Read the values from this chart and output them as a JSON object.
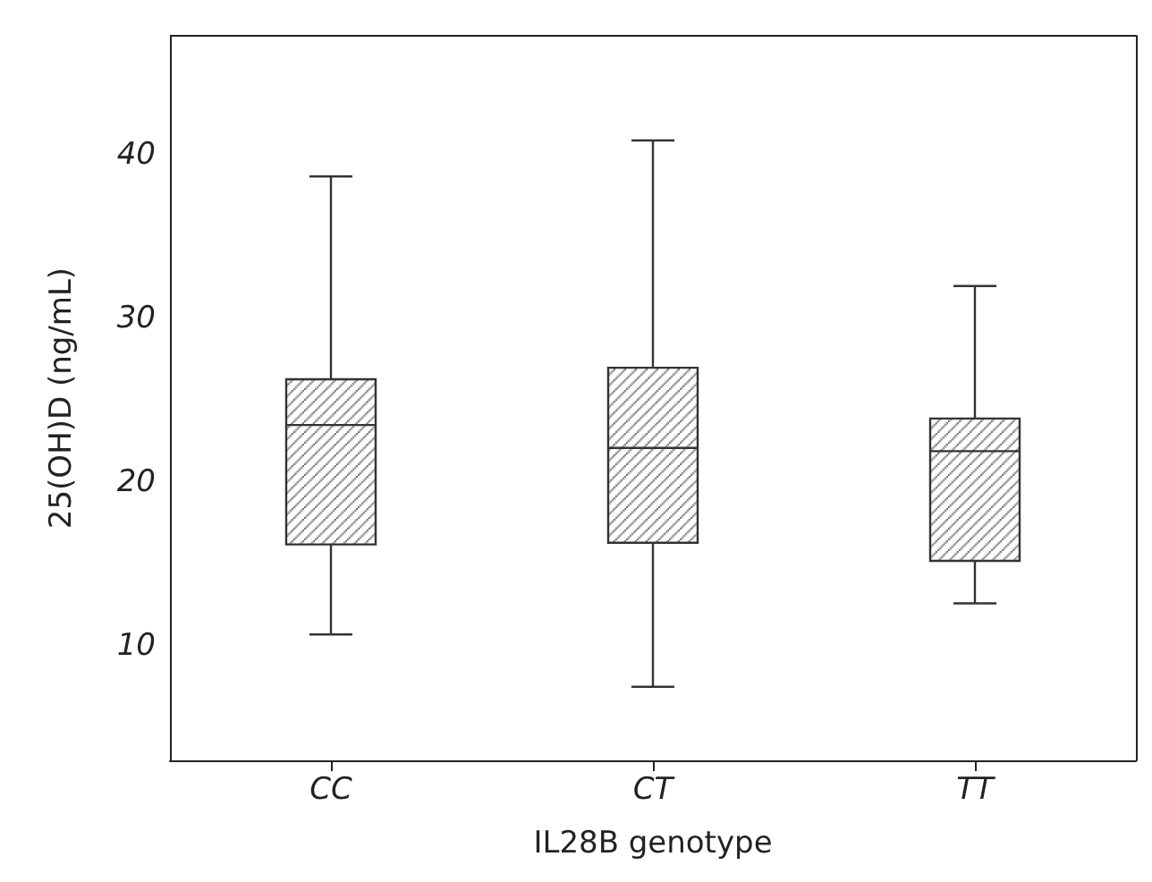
{
  "chart_data": {
    "type": "box",
    "xlabel": "IL28B genotype",
    "ylabel": "25(OH)D (ng/mL)",
    "categories": [
      "CC",
      "CT",
      "TT"
    ],
    "series": [
      {
        "color": "#333333",
        "boxes": [
          {
            "low": 10.7,
            "q1": 16.2,
            "median": 23.5,
            "q3": 26.3,
            "high": 38.7
          },
          {
            "low": 7.5,
            "q1": 16.3,
            "median": 22.1,
            "q3": 27.0,
            "high": 40.9
          },
          {
            "low": 12.6,
            "q1": 15.2,
            "median": 21.9,
            "q3": 23.9,
            "high": 32.0
          }
        ]
      }
    ],
    "ylim": [
      3,
      47.3
    ],
    "yticks": [
      10,
      20,
      30,
      40
    ],
    "grid": false
  }
}
